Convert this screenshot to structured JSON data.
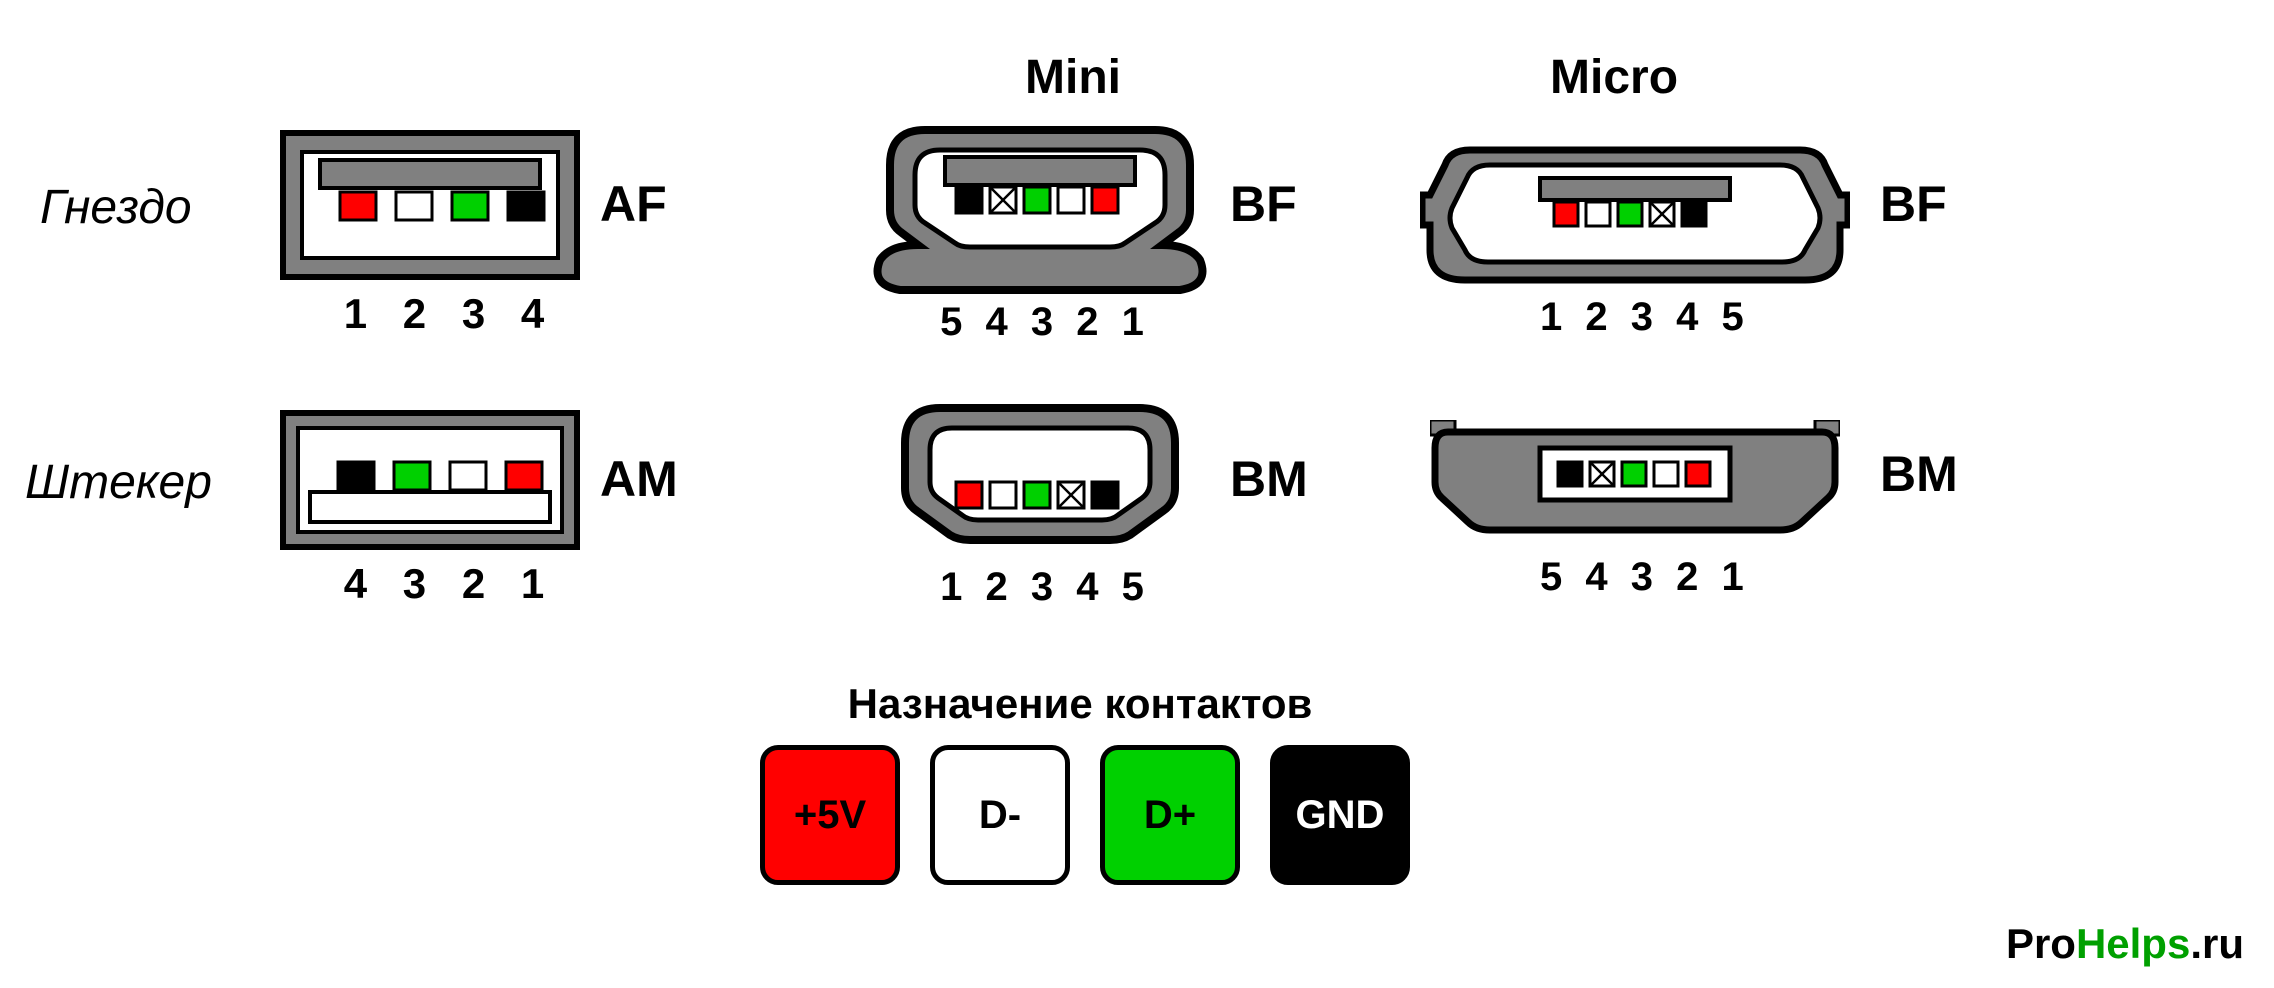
{
  "colors": {
    "red": "#ff0000",
    "white": "#ffffff",
    "green": "#00d000",
    "black": "#000000",
    "cross": "#ffffff",
    "grey": "#808080",
    "stroke": "#000000"
  },
  "headers": {
    "mini": "Mini",
    "micro": "Micro"
  },
  "rows": {
    "socket": "Гнездо",
    "plug": "Штекер"
  },
  "legend": {
    "title": "Назначение контактов",
    "items": [
      {
        "label": "+5V",
        "bg": "#ff0000",
        "fg": "#000000"
      },
      {
        "label": "D-",
        "bg": "#ffffff",
        "fg": "#000000"
      },
      {
        "label": "D+",
        "bg": "#00d000",
        "fg": "#000000"
      },
      {
        "label": "GND",
        "bg": "#000000",
        "fg": "#ffffff"
      }
    ]
  },
  "watermark": {
    "pro": "Pro",
    "pro_color": "#000000",
    "helps": "Helps",
    "helps_color": "#00a000",
    "suffix": ".ru",
    "suffix_color": "#000000"
  },
  "connectors": {
    "af": {
      "type_label": "AF",
      "pin_sequence": "1 2 3 4",
      "pins": [
        "red",
        "white",
        "green",
        "black"
      ]
    },
    "am": {
      "type_label": "AM",
      "pin_sequence": "4 3 2 1",
      "pins": [
        "black",
        "green",
        "white",
        "red"
      ]
    },
    "mini_bf": {
      "type_label": "BF",
      "pin_sequence": "5 4 3 2 1",
      "pins": [
        "black",
        "cross",
        "green",
        "white",
        "red"
      ]
    },
    "mini_bm": {
      "type_label": "BM",
      "pin_sequence": "1 2 3 4 5",
      "pins": [
        "red",
        "white",
        "green",
        "cross",
        "black"
      ]
    },
    "micro_bf": {
      "type_label": "BF",
      "pin_sequence": "1 2 3 4 5",
      "pins": [
        "red",
        "white",
        "green",
        "cross",
        "black"
      ]
    },
    "micro_bm": {
      "type_label": "BM",
      "pin_sequence": "5 4 3 2 1",
      "pins": [
        "black",
        "cross",
        "green",
        "white",
        "red"
      ]
    }
  }
}
